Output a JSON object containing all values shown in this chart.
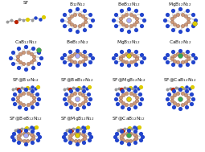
{
  "grid_rows": 4,
  "grid_cols": 4,
  "panels": [
    {
      "label": "SF",
      "row": 0,
      "col": 0,
      "type": "sf"
    },
    {
      "label": "B$_{12}$N$_{12}$",
      "row": 0,
      "col": 1,
      "type": "b12n12"
    },
    {
      "label": "BeB$_{12}$N$_{12}$",
      "row": 0,
      "col": 2,
      "type": "beb12n12"
    },
    {
      "label": "MgB$_{12}$N$_{12}$",
      "row": 0,
      "col": 3,
      "type": "mgb12n12"
    },
    {
      "label": "CaB$_{12}$N$_{12}$",
      "row": 1,
      "col": 0,
      "type": "cab12n12"
    },
    {
      "label": "BeB$_{12}$N$_{12}$",
      "row": 1,
      "col": 1,
      "type": "beb12n12b"
    },
    {
      "label": "MgB$_{12}$N$_{12}$",
      "row": 1,
      "col": 2,
      "type": "mgb12n12b"
    },
    {
      "label": "CaB$_{12}$N$_{12}$",
      "row": 1,
      "col": 3,
      "type": "cab12n12b"
    },
    {
      "label": "SF@B$_{12}$N$_{12}$",
      "row": 2,
      "col": 0,
      "type": "sf_b12n12"
    },
    {
      "label": "SF@BeB$_{12}$N$_{12}$",
      "row": 2,
      "col": 1,
      "type": "sf_beb12n12"
    },
    {
      "label": "SF@MgB$_{12}$N$_{12}$",
      "row": 2,
      "col": 2,
      "type": "sf_mgb12n12"
    },
    {
      "label": "SF@CaB$_{12}$N$_{12}$",
      "row": 2,
      "col": 3,
      "type": "sf_cab12n12"
    },
    {
      "label": "SF@BeB$_{12}$N$_{12}$",
      "row": 3,
      "col": 0,
      "type": "sf_beb12n12b"
    },
    {
      "label": "SF@MgB$_{12}$N$_{12}$",
      "row": 3,
      "col": 1,
      "type": "sf_mgb12n12b"
    },
    {
      "label": "SF@CaB$_{12}$N$_{12}$",
      "row": 3,
      "col": 2,
      "type": "sf_cab12n12b"
    }
  ],
  "border_color": "#bbbbbb",
  "label_fontsize": 4.2,
  "label_color": "#111111",
  "fig_width": 2.56,
  "fig_height": 1.89,
  "dpi": 100,
  "cage_blue": "#2244cc",
  "cage_pink": "#cc9977",
  "cage_yellow": "#ddcc00",
  "cage_red": "#bb2200",
  "cage_gray": "#999999",
  "cage_dark": "#444444",
  "cage_teal": "#2299aa",
  "cage_green": "#33aa55"
}
